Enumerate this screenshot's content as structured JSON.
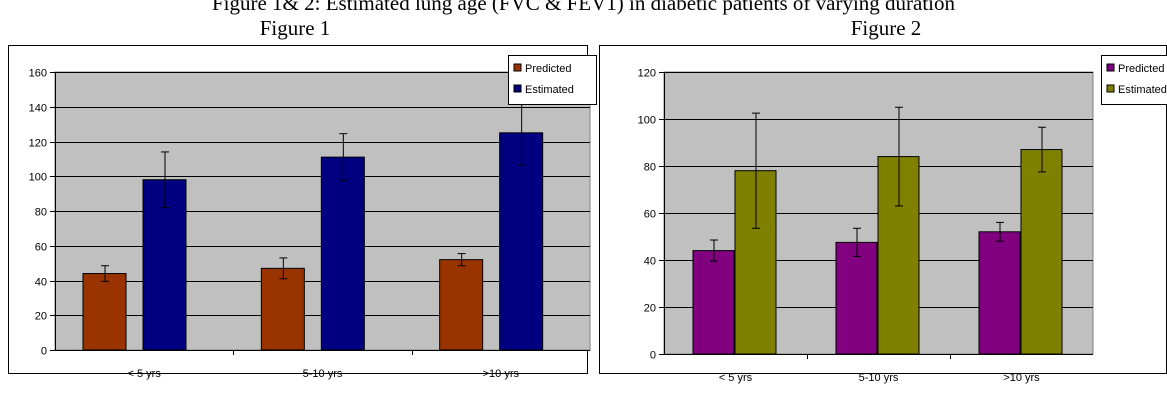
{
  "page_title": "Figure 1& 2: Estimated lung age (FVC & FEV1) in diabetic patients of varying duration",
  "figures": [
    {
      "label": "Figure 1"
    },
    {
      "label": "Figure 2"
    }
  ],
  "chart_data": [
    {
      "type": "bar",
      "title": "Figure 1",
      "categories": [
        "< 5 yrs",
        "5-10 yrs",
        ">10 yrs"
      ],
      "series": [
        {
          "name": "Predicted",
          "color": "#993300",
          "values": [
            44,
            47,
            52
          ],
          "error": [
            4.5,
            6,
            3.5
          ]
        },
        {
          "name": "Estimated",
          "color": "#000080",
          "values": [
            98,
            111,
            125
          ],
          "error": [
            16,
            13.5,
            18.5
          ]
        }
      ],
      "ylim": [
        0,
        160
      ],
      "yticks": [
        "0",
        "20",
        "40",
        "60",
        "80",
        "100",
        "120",
        "140",
        "160"
      ],
      "grid": true,
      "plot_background": "#c0c0c0",
      "legend": "top-right"
    },
    {
      "type": "bar",
      "title": "Figure 2",
      "categories": [
        "< 5 yrs",
        "5-10 yrs",
        ">10 yrs"
      ],
      "series": [
        {
          "name": "Predicted",
          "color": "#800080",
          "values": [
            44,
            47.5,
            52
          ],
          "error": [
            4.5,
            6,
            4
          ]
        },
        {
          "name": "Estimated",
          "color": "#808000",
          "values": [
            78,
            84,
            87
          ],
          "error": [
            24.5,
            21,
            9.5
          ]
        }
      ],
      "ylim": [
        0,
        120
      ],
      "yticks": [
        "0",
        "20",
        "40",
        "60",
        "80",
        "100",
        "120"
      ],
      "grid": true,
      "plot_background": "#c0c0c0",
      "legend": "top-right"
    }
  ]
}
